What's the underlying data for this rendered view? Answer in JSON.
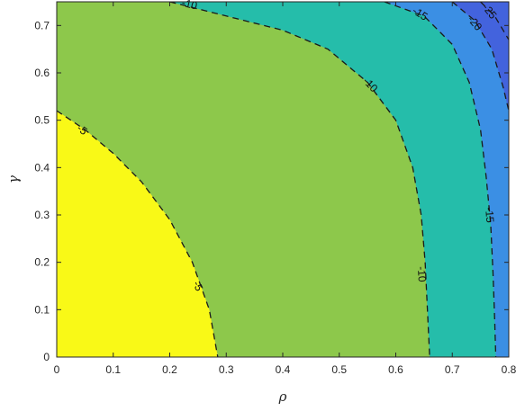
{
  "chart_data": {
    "type": "contour",
    "title": "",
    "xlabel": "ρ",
    "ylabel": "γ",
    "xlim": [
      0,
      0.8
    ],
    "ylim": [
      0,
      0.75
    ],
    "x_ticks": [
      "0",
      "0.1",
      "0.2",
      "0.3",
      "0.4",
      "0.5",
      "0.6",
      "0.7",
      "0.8"
    ],
    "y_ticks": [
      "0",
      "0.1",
      "0.2",
      "0.3",
      "0.4",
      "0.5",
      "0.6",
      "0.7"
    ],
    "contour_levels": [
      {
        "level": -5,
        "label": "-5",
        "points": [
          [
            0,
            0.52
          ],
          [
            0.05,
            0.48
          ],
          [
            0.1,
            0.43
          ],
          [
            0.15,
            0.37
          ],
          [
            0.2,
            0.29
          ],
          [
            0.24,
            0.2
          ],
          [
            0.27,
            0.1
          ],
          [
            0.285,
            0
          ]
        ],
        "label_positions": [
          [
            0.045,
            0.48
          ],
          [
            0.25,
            0.15
          ]
        ]
      },
      {
        "level": -10,
        "label": "-10",
        "points": [
          [
            0.2,
            0.75
          ],
          [
            0.3,
            0.72
          ],
          [
            0.4,
            0.69
          ],
          [
            0.48,
            0.65
          ],
          [
            0.55,
            0.58
          ],
          [
            0.6,
            0.5
          ],
          [
            0.63,
            0.4
          ],
          [
            0.645,
            0.3
          ],
          [
            0.652,
            0.2
          ],
          [
            0.656,
            0.1
          ],
          [
            0.66,
            0
          ]
        ],
        "label_positions": [
          [
            0.235,
            0.745
          ],
          [
            0.555,
            0.575
          ],
          [
            0.646,
            0.175
          ]
        ]
      },
      {
        "level": -15,
        "label": "-15",
        "points": [
          [
            0.58,
            0.75
          ],
          [
            0.65,
            0.72
          ],
          [
            0.7,
            0.66
          ],
          [
            0.73,
            0.58
          ],
          [
            0.75,
            0.48
          ],
          [
            0.76,
            0.38
          ],
          [
            0.768,
            0.28
          ],
          [
            0.772,
            0.18
          ],
          [
            0.775,
            0.08
          ],
          [
            0.777,
            0
          ]
        ],
        "label_positions": [
          [
            0.643,
            0.725
          ],
          [
            0.766,
            0.3
          ]
        ]
      },
      {
        "level": -20,
        "label": "-20",
        "points": [
          [
            0.7,
            0.75
          ],
          [
            0.74,
            0.71
          ],
          [
            0.77,
            0.65
          ],
          [
            0.79,
            0.57
          ],
          [
            0.8,
            0.52
          ]
        ],
        "label_positions": [
          [
            0.74,
            0.705
          ]
        ]
      },
      {
        "level": -25,
        "label": "-25",
        "points": [
          [
            0.75,
            0.75
          ],
          [
            0.775,
            0.72
          ],
          [
            0.79,
            0.69
          ],
          [
            0.8,
            0.67
          ]
        ],
        "label_positions": [
          [
            0.766,
            0.73
          ]
        ]
      }
    ],
    "fill_colors": [
      "#f9f917",
      "#fbb539",
      "#8dc84b",
      "#25bdaa",
      "#3b8fe4",
      "#4363dd"
    ],
    "grid": false,
    "legend": "none"
  }
}
